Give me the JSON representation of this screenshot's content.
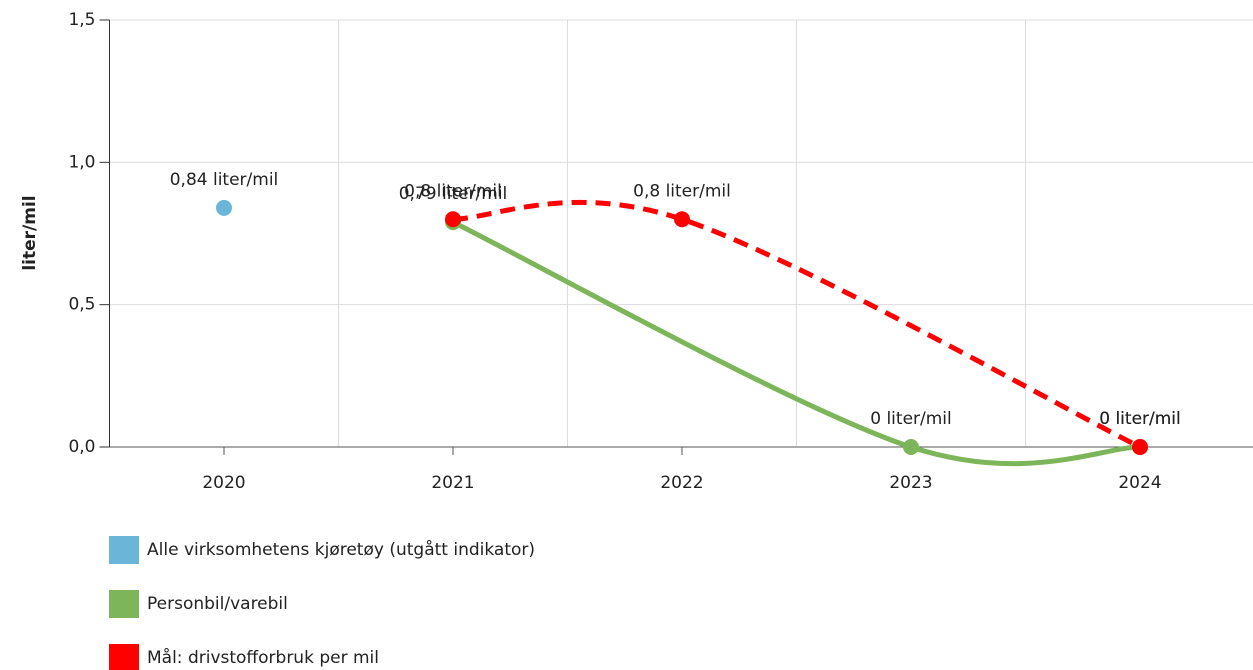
{
  "chart_data": {
    "type": "line",
    "y_label": "liter/mil",
    "categories": [
      "2020",
      "2021",
      "2022",
      "2023",
      "2024"
    ],
    "ylim": [
      0,
      1.5
    ],
    "yticks": [
      {
        "value": 0,
        "label": "0,0"
      },
      {
        "value": 0.5,
        "label": "0,5"
      },
      {
        "value": 1,
        "label": "1,0"
      },
      {
        "value": 1.5,
        "label": "1,5"
      }
    ],
    "grid": true,
    "series": [
      {
        "name": "Alle virksomhetens kjøretøy (utgått indikator)",
        "color": "#6bb5d9",
        "line": false,
        "values": [
          0.84,
          null,
          null,
          null,
          null
        ],
        "value_labels": [
          "0,84 liter/mil",
          null,
          null,
          null,
          null
        ]
      },
      {
        "name": "Personbil/varebil",
        "color": "#7cb55a",
        "line": true,
        "dashed": false,
        "connect_nulls": true,
        "values": [
          null,
          0.79,
          null,
          0,
          0
        ],
        "value_labels": [
          null,
          "0,79 liter/mil",
          null,
          "0 liter/mil",
          "0 liter/mil"
        ]
      },
      {
        "name": "Mål: drivstofforbruk per mil",
        "color": "#ff0000",
        "line": true,
        "dashed": true,
        "connect_nulls": true,
        "values": [
          null,
          0.8,
          0.8,
          null,
          0
        ],
        "value_labels": [
          null,
          "0,8 liter/mil",
          "0,8 liter/mil",
          null,
          "0 liter/mil"
        ]
      }
    ]
  }
}
